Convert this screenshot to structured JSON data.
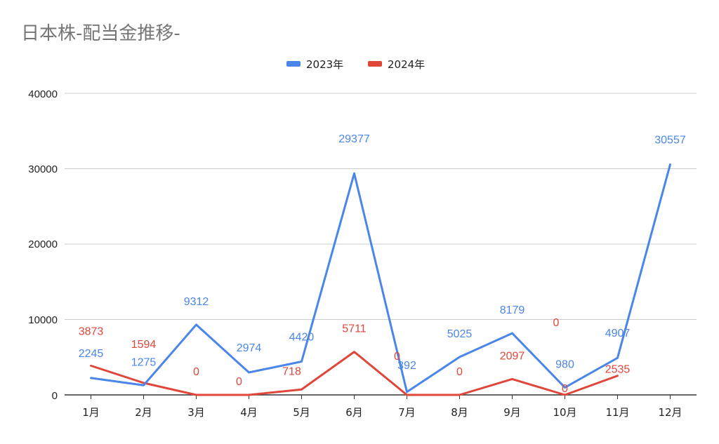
{
  "chart_data": {
    "type": "line",
    "title": "日本株-配当金推移-",
    "categories": [
      "1月",
      "2月",
      "3月",
      "4月",
      "5月",
      "6月",
      "7月",
      "8月",
      "9月",
      "10月",
      "11月",
      "12月"
    ],
    "series": [
      {
        "name": "2023年",
        "color": "#4a86e8",
        "values": [
          2245,
          1275,
          9312,
          2974,
          4420,
          29377,
          392,
          5025,
          8179,
          980,
          4907,
          30557
        ]
      },
      {
        "name": "2024年",
        "color": "#e0463a",
        "values": [
          3873,
          1594,
          0,
          0,
          718,
          5711,
          0,
          0,
          2097,
          0,
          2535,
          null
        ],
        "extra_labels": [
          "0"
        ]
      }
    ],
    "yticks": [
      "0",
      "10000",
      "20000",
      "30000",
      "40000"
    ],
    "ylim": [
      0,
      40000
    ],
    "grid": true,
    "legend_position": "top-center"
  }
}
